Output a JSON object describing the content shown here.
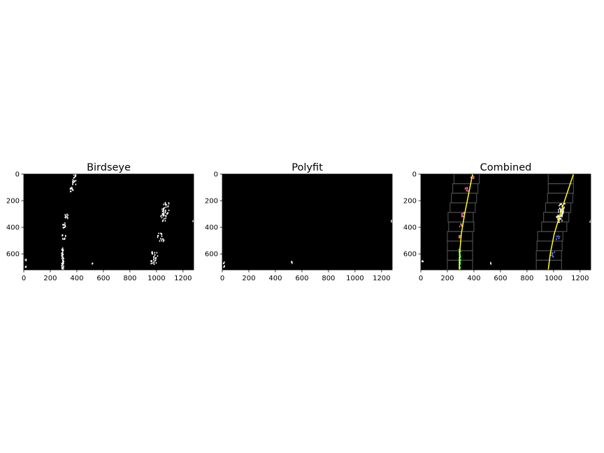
{
  "figure": {
    "background": "#ffffff",
    "image_background": "#000000"
  },
  "chart_data": [
    {
      "type": "other",
      "subtype": "image",
      "title": "Birdseye",
      "xlabel": "",
      "ylabel": "",
      "xlim": [
        0,
        1280
      ],
      "ylim": [
        720,
        0
      ],
      "xticks": [
        0,
        200,
        400,
        600,
        800,
        1000,
        1200
      ],
      "yticks": [
        0,
        200,
        400,
        600
      ],
      "grid": false,
      "legend": "none",
      "content": "binary lane-pixel mask (white on black)",
      "pixel_color": "#ffffff"
    },
    {
      "type": "other",
      "subtype": "image",
      "title": "Polyfit",
      "xlabel": "",
      "ylabel": "",
      "xlim": [
        0,
        1280
      ],
      "ylim": [
        720,
        0
      ],
      "xticks": [
        0,
        200,
        400,
        600,
        800,
        1000,
        1200
      ],
      "yticks": [
        0,
        200,
        400,
        600
      ],
      "grid": false,
      "legend": "none",
      "content": "mostly empty black image with a few stray white pixels",
      "pixel_color": "#ffffff"
    },
    {
      "type": "line",
      "subtype": "image-overlay",
      "title": "Combined",
      "xlabel": "",
      "ylabel": "",
      "xlim": [
        0,
        1280
      ],
      "ylim": [
        720,
        0
      ],
      "xticks": [
        0,
        200,
        400,
        600,
        800,
        1000,
        1200
      ],
      "yticks": [
        0,
        200,
        400,
        600
      ],
      "grid": false,
      "legend": "none",
      "colors": {
        "fit_line": "#ffff1a",
        "windows": "#4a4a4a",
        "left_pixels": "#ff6fa8",
        "right_pixels": "#6a7cff",
        "highlight": "#4cff4c"
      },
      "series": [
        {
          "x": [
            390,
            360,
            330,
            305,
            292,
            290
          ],
          "y": [
            0,
            150,
            300,
            450,
            600,
            720
          ]
        },
        {
          "x": [
            1150,
            1100,
            1050,
            1005,
            975,
            960
          ],
          "y": [
            0,
            150,
            300,
            450,
            600,
            720
          ]
        }
      ],
      "sliding_windows": {
        "left": [
          {
            "x": [
              200,
              390
            ],
            "y": [
              648,
              720
            ]
          },
          {
            "x": [
              200,
              390
            ],
            "y": [
              576,
              648
            ]
          },
          {
            "x": [
              200,
              390
            ],
            "y": [
              504,
              576
            ]
          },
          {
            "x": [
              200,
              390
            ],
            "y": [
              432,
              504
            ]
          },
          {
            "x": [
              210,
              400
            ],
            "y": [
              360,
              432
            ]
          },
          {
            "x": [
              205,
              395
            ],
            "y": [
              288,
              360
            ]
          },
          {
            "x": [
              220,
              410
            ],
            "y": [
              216,
              288
            ]
          },
          {
            "x": [
              230,
              420
            ],
            "y": [
              144,
              216
            ]
          },
          {
            "x": [
              240,
              430
            ],
            "y": [
              72,
              144
            ]
          },
          {
            "x": [
              250,
              440
            ],
            "y": [
              0,
              72
            ]
          }
        ],
        "right": [
          {
            "x": [
              870,
              1060
            ],
            "y": [
              648,
              720
            ]
          },
          {
            "x": [
              870,
              1060
            ],
            "y": [
              576,
              648
            ]
          },
          {
            "x": [
              875,
              1065
            ],
            "y": [
              504,
              576
            ]
          },
          {
            "x": [
              880,
              1070
            ],
            "y": [
              432,
              504
            ]
          },
          {
            "x": [
              910,
              1100
            ],
            "y": [
              360,
              432
            ]
          },
          {
            "x": [
              925,
              1115
            ],
            "y": [
              288,
              360
            ]
          },
          {
            "x": [
              940,
              1130
            ],
            "y": [
              216,
              288
            ]
          },
          {
            "x": [
              955,
              1145
            ],
            "y": [
              144,
              216
            ]
          },
          {
            "x": [
              960,
              1150
            ],
            "y": [
              72,
              144
            ]
          },
          {
            "x": [
              960,
              1150
            ],
            "y": [
              0,
              72
            ]
          }
        ]
      }
    }
  ]
}
